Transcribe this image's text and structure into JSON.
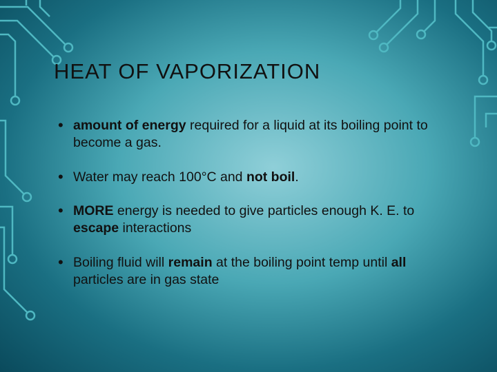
{
  "slide": {
    "title": "HEAT OF VAPORIZATION",
    "bullets": [
      {
        "segments": [
          {
            "text": "amount of energy",
            "bold": true
          },
          {
            "text": " required for a liquid at its boiling point to become a gas.",
            "bold": false
          }
        ]
      },
      {
        "segments": [
          {
            "text": "Water may reach 100°C and ",
            "bold": false
          },
          {
            "text": "not boil",
            "bold": true
          },
          {
            "text": ".",
            "bold": false
          }
        ]
      },
      {
        "segments": [
          {
            "text": "MORE",
            "bold": true
          },
          {
            "text": " energy is needed to give particles enough K. E. to ",
            "bold": false
          },
          {
            "text": "escape",
            "bold": true
          },
          {
            "text": " interactions",
            "bold": false
          }
        ]
      },
      {
        "segments": [
          {
            "text": "Boiling fluid will ",
            "bold": false
          },
          {
            "text": "remain",
            "bold": true
          },
          {
            "text": " at the boiling point temp until ",
            "bold": false
          },
          {
            "text": "all",
            "bold": true
          },
          {
            "text": " particles are in gas state",
            "bold": false
          }
        ]
      }
    ]
  },
  "style": {
    "bg_gradient_inner": "#8fcfd8",
    "bg_gradient_mid": "#4aa8b5",
    "bg_gradient_outer": "#1a6f82",
    "bg_gradient_edge": "#0a4a5c",
    "circuit_stroke": "#4fb8c2",
    "circuit_stroke_width": 2.5,
    "text_color": "#111111",
    "title_fontsize": 31,
    "body_fontsize": 19.5,
    "bullet_char": "•"
  }
}
